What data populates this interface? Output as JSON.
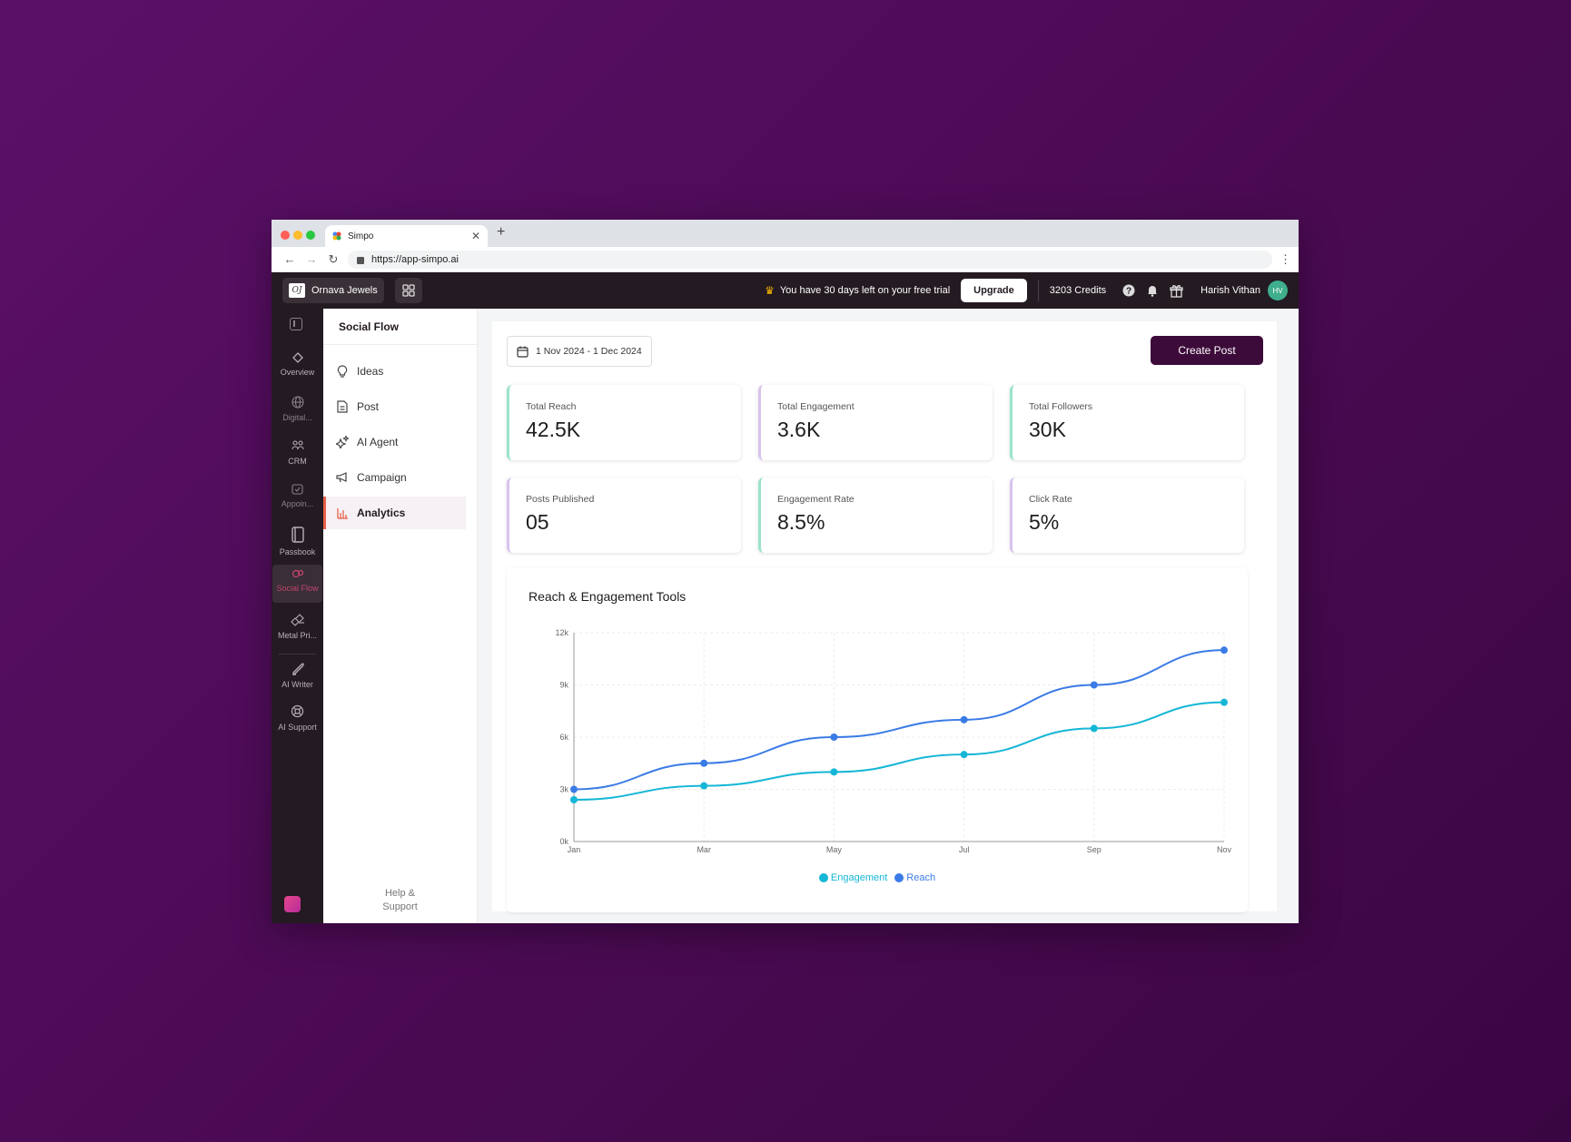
{
  "browser": {
    "tab_title": "Simpo",
    "url": "https://app-simpo.ai"
  },
  "header": {
    "business_name": "Ornava Jewels",
    "logo_text": "OJ",
    "trial_text": "You have 30 days left on your free trial",
    "upgrade_label": "Upgrade",
    "credits": "3203 Credits",
    "user_name": "Harish Vithan",
    "user_initials": "HV"
  },
  "rail": {
    "items": [
      {
        "label": "Overview",
        "icon": "diamond-icon"
      },
      {
        "label": "Digital...",
        "icon": "globe-icon"
      },
      {
        "label": "CRM",
        "icon": "people-icon"
      },
      {
        "label": "Appoin...",
        "icon": "calendar-icon"
      },
      {
        "label": "Passbook",
        "icon": "book-icon"
      },
      {
        "label": "Social Flow",
        "icon": "social-icon",
        "active": true
      },
      {
        "label": "Metal Pri...",
        "icon": "metal-icon"
      },
      {
        "label": "AI Writer",
        "icon": "pen-icon"
      },
      {
        "label": "AI Support",
        "icon": "support-icon"
      }
    ]
  },
  "subnav": {
    "title": "Social Flow",
    "items": [
      {
        "label": "Ideas",
        "icon": "bulb-icon"
      },
      {
        "label": "Post",
        "icon": "document-icon"
      },
      {
        "label": "AI Agent",
        "icon": "sparkle-icon"
      },
      {
        "label": "Campaign",
        "icon": "megaphone-icon"
      },
      {
        "label": "Analytics",
        "icon": "bar-chart-icon",
        "active": true
      }
    ],
    "help_line1": "Help &",
    "help_line2": "Support"
  },
  "main": {
    "date_range": "1 Nov 2024 - 1 Dec 2024",
    "create_post_label": "Create Post",
    "stats": [
      {
        "label": "Total Reach",
        "value": "42.5K"
      },
      {
        "label": "Total Engagement",
        "value": "3.6K"
      },
      {
        "label": "Total Followers",
        "value": "30K"
      },
      {
        "label": "Posts Published",
        "value": "05"
      },
      {
        "label": "Engagement Rate",
        "value": "8.5%"
      },
      {
        "label": "Click Rate",
        "value": "5%"
      }
    ]
  },
  "colors": {
    "engagement": "#15b6d6",
    "reach": "#3b7be6",
    "accent": "#3d0b3a"
  },
  "chart_data": {
    "type": "line",
    "title": "Reach & Engagement Tools",
    "categories": [
      "Jan",
      "Mar",
      "May",
      "Jul",
      "Sep",
      "Nov"
    ],
    "y_ticks": [
      "0k",
      "3k",
      "6k",
      "9k",
      "12k"
    ],
    "ylim": [
      0,
      12000
    ],
    "series": [
      {
        "name": "Engagement",
        "values": [
          2400,
          3200,
          4000,
          5000,
          6500,
          8000
        ]
      },
      {
        "name": "Reach",
        "values": [
          3000,
          4500,
          6000,
          7000,
          9000,
          11000
        ]
      }
    ],
    "legend": "bottom-center",
    "grid": true
  }
}
